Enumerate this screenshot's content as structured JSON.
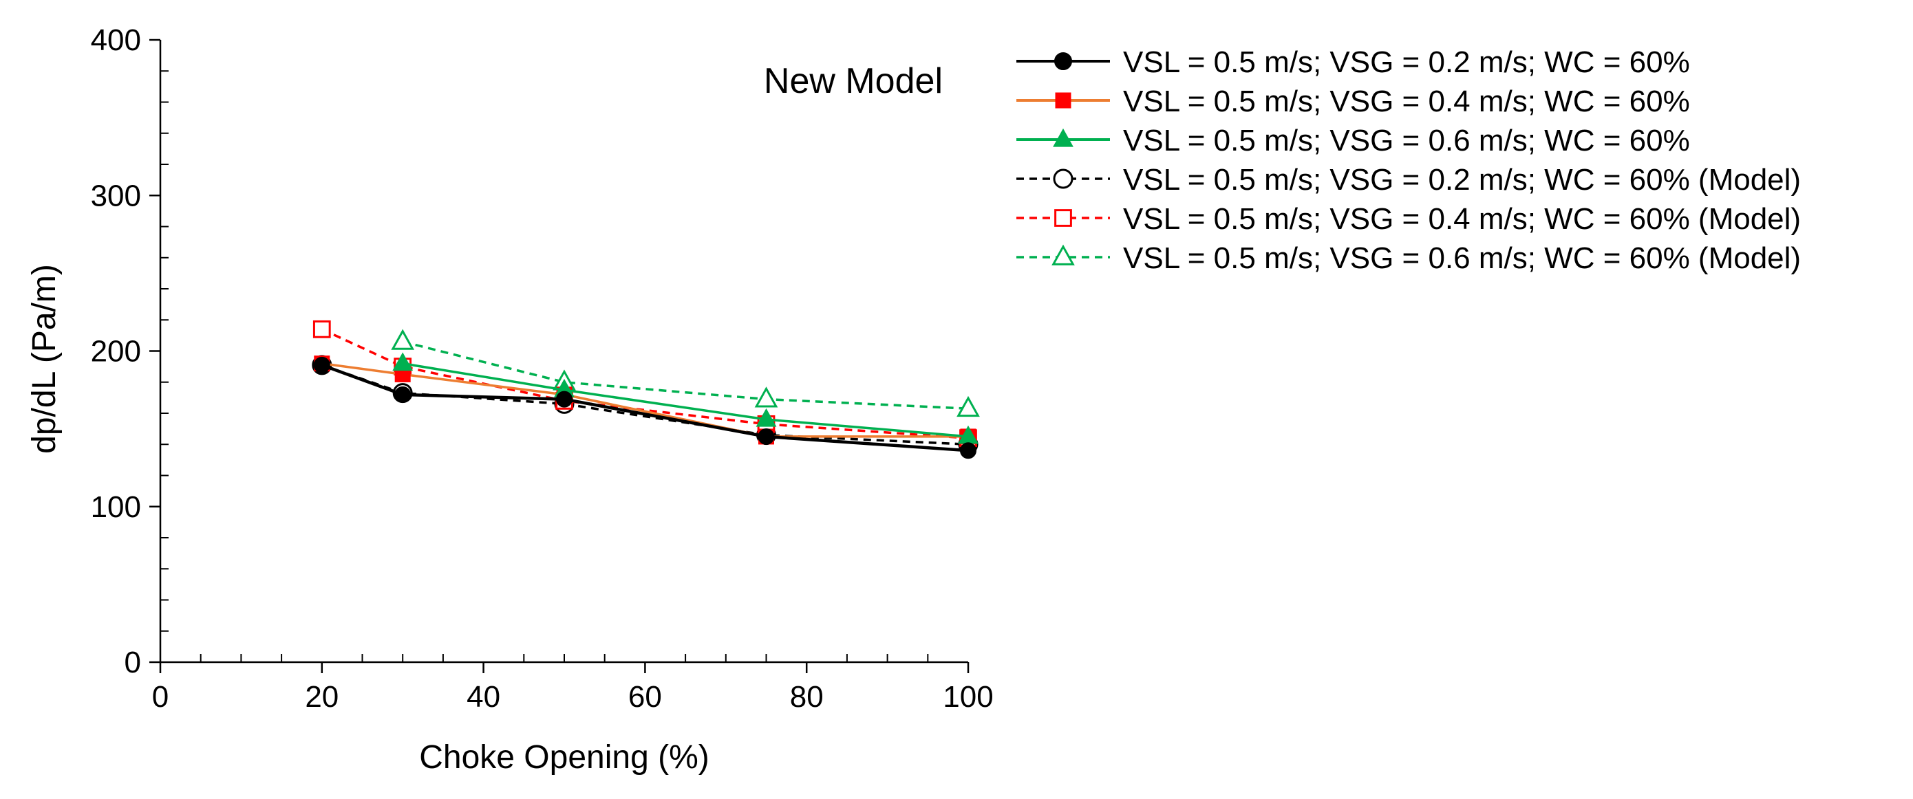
{
  "chart_data": {
    "type": "line",
    "title": "",
    "annotation": "New Model",
    "xlabel": "Choke Opening (%)",
    "ylabel": "dp/dL (Pa/m)",
    "xlim": [
      0,
      100
    ],
    "ylim": [
      0,
      400
    ],
    "x_major_ticks": [
      0,
      20,
      40,
      60,
      80,
      100
    ],
    "x_minor_step": 5,
    "y_major_ticks": [
      0,
      100,
      200,
      300,
      400
    ],
    "y_minor_step": 20,
    "x_tick_labels": [
      "0",
      "20",
      "40",
      "60",
      "80",
      "100"
    ],
    "y_tick_labels": [
      "0",
      "100",
      "200",
      "300",
      "400"
    ],
    "grid": false,
    "legend_position": "right",
    "x": [
      20,
      30,
      50,
      75,
      100
    ],
    "series": [
      {
        "name": "VSL = 0.5 m/s; VSG = 0.2 m/s; WC = 60%",
        "values": [
          191,
          172,
          169,
          145,
          136
        ],
        "line_color": "#000000",
        "marker_color": "#000000",
        "marker": "circle",
        "filled": true,
        "dashed": false
      },
      {
        "name": "VSL = 0.5 m/s; VSG = 0.4 m/s; WC = 60%",
        "values": [
          192,
          185,
          172,
          145,
          145
        ],
        "line_color": "#ED7D31",
        "marker_color": "#FF0000",
        "marker": "square",
        "filled": true,
        "dashed": false
      },
      {
        "name": "VSL = 0.5 m/s; VSG = 0.6 m/s; WC = 60%",
        "values": [
          null,
          192,
          175,
          156,
          145
        ],
        "line_color": "#00B050",
        "marker_color": "#00B050",
        "marker": "triangle",
        "filled": true,
        "dashed": false
      },
      {
        "name": "VSL = 0.5 m/s; VSG = 0.2 m/s; WC = 60% (Model)",
        "values": [
          191,
          173,
          166,
          146,
          140
        ],
        "line_color": "#000000",
        "marker_color": "#000000",
        "marker": "circle",
        "filled": false,
        "dashed": true
      },
      {
        "name": "VSL = 0.5 m/s; VSG = 0.4 m/s; WC = 60% (Model)",
        "values": [
          214,
          190,
          168,
          153,
          144
        ],
        "line_color": "#FF0000",
        "marker_color": "#FF0000",
        "marker": "square",
        "filled": false,
        "dashed": true
      },
      {
        "name": "VSL = 0.5 m/s; VSG = 0.6 m/s; WC = 60% (Model)",
        "values": [
          null,
          206,
          180,
          169,
          163
        ],
        "line_color": "#00B050",
        "marker_color": "#00B050",
        "marker": "triangle",
        "filled": false,
        "dashed": true
      }
    ]
  }
}
